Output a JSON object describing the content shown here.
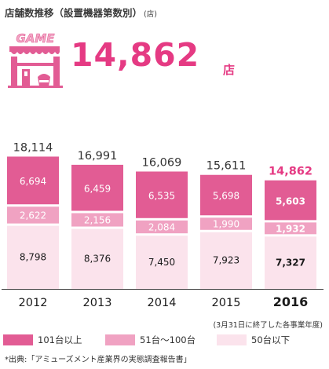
{
  "header": {
    "title": "店舗数推移（設置機器第数別）",
    "title_unit": "(店)",
    "icon_label": "GAME",
    "highlight_value": "14,862",
    "highlight_unit": "店"
  },
  "colors": {
    "top": "#e25c94",
    "mid": "#f0a2c2",
    "low": "#fbe3ec",
    "accent": "#e53a83",
    "text": "#333333"
  },
  "chart_data": {
    "type": "bar",
    "stacked": true,
    "categories": [
      "2012",
      "2013",
      "2014",
      "2015",
      "2016"
    ],
    "totals": [
      "18,114",
      "16,991",
      "16,069",
      "15,611",
      "14,862"
    ],
    "series": [
      {
        "name": "50台以下",
        "values": [
          8798,
          8376,
          7450,
          7923,
          7327
        ],
        "labels": [
          "8,798",
          "8,376",
          "7,450",
          "7,923",
          "7,327"
        ]
      },
      {
        "name": "51台〜100台",
        "values": [
          2622,
          2156,
          2084,
          1990,
          1932
        ],
        "labels": [
          "2,622",
          "2,156",
          "2,084",
          "1,990",
          "1,932"
        ]
      },
      {
        "name": "101台以上",
        "values": [
          6694,
          6459,
          6535,
          5698,
          5603
        ],
        "labels": [
          "6,694",
          "6,459",
          "6,535",
          "5,698",
          "5,603"
        ]
      }
    ],
    "highlight_category": "2016",
    "ylim": [
      0,
      18114
    ],
    "grid": false
  },
  "note": "(3月31日に終了した各事業年度)",
  "legend": [
    {
      "label": "101台以上",
      "color": "#e25c94"
    },
    {
      "label": "51台〜100台",
      "color": "#f0a2c2"
    },
    {
      "label": "50台以下",
      "color": "#fbe3ec"
    }
  ],
  "source": "*出典:「アミューズメント産業界の実態調査報告書」"
}
